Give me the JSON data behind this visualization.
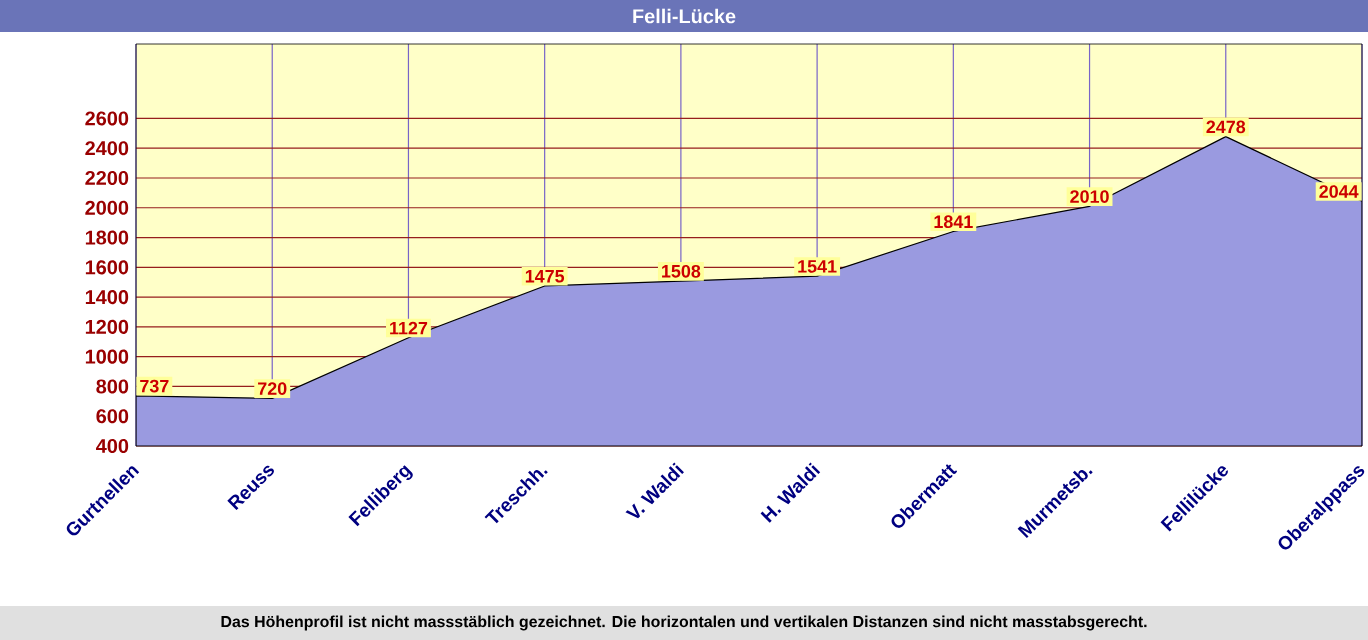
{
  "chart_data": {
    "type": "area",
    "title": "Felli-Lücke",
    "categories": [
      "Gurtnellen",
      "Reuss",
      "Felliberg",
      "Treschh.",
      "V. Waldi",
      "H. Waldi",
      "Obermatt",
      "Murmetsb.",
      "Fellilücke",
      "Oberalppass"
    ],
    "values": [
      737,
      720,
      1127,
      1475,
      1508,
      1541,
      1841,
      2010,
      2478,
      2044
    ],
    "color": "#9a9ae0",
    "ylim": [
      400,
      3100
    ],
    "yticks": [
      400,
      600,
      800,
      1000,
      1200,
      1400,
      1600,
      1800,
      2000,
      2200,
      2400,
      2600
    ],
    "grid": true,
    "data_labels": true,
    "annotations": [
      "Das Höhenprofil ist nicht massstäblich gezeichnet. Die horizontalen und vertikalen Distanzen sind nicht masstabsgerecht."
    ]
  }
}
